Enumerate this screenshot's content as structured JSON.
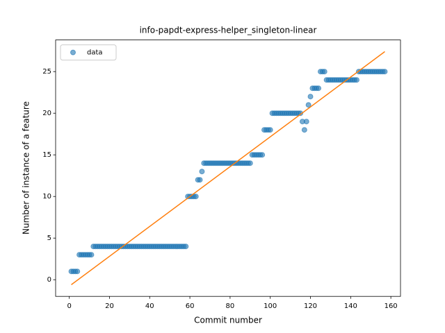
{
  "chart_data": {
    "type": "scatter",
    "title": "info-papdt-express-helper_singleton-linear",
    "x_label": "Commit number",
    "y_label": "Number of instance of a feature",
    "legend": "upper left",
    "series": [
      {
        "name": "data",
        "color": "#1f77b4",
        "x": [
          1,
          2,
          3,
          4,
          5,
          6,
          7,
          8,
          9,
          10,
          11,
          12,
          13,
          14,
          15,
          16,
          17,
          18,
          19,
          20,
          21,
          22,
          23,
          24,
          25,
          26,
          27,
          28,
          29,
          30,
          31,
          32,
          33,
          34,
          35,
          36,
          37,
          38,
          39,
          40,
          41,
          42,
          43,
          44,
          45,
          46,
          47,
          48,
          49,
          50,
          51,
          52,
          53,
          54,
          55,
          56,
          57,
          58,
          59,
          60,
          61,
          62,
          63,
          64,
          65,
          66,
          67,
          68,
          69,
          70,
          71,
          72,
          73,
          74,
          75,
          76,
          77,
          78,
          79,
          80,
          81,
          82,
          83,
          84,
          85,
          86,
          87,
          88,
          89,
          90,
          91,
          92,
          93,
          94,
          95,
          96,
          97,
          98,
          99,
          100,
          101,
          102,
          103,
          104,
          105,
          106,
          107,
          108,
          109,
          110,
          111,
          112,
          113,
          114,
          115,
          116,
          117,
          118,
          119,
          120,
          121,
          122,
          123,
          124,
          125,
          126,
          127,
          128,
          129,
          130,
          131,
          132,
          133,
          134,
          135,
          136,
          137,
          138,
          139,
          140,
          141,
          142,
          143,
          144,
          145,
          146,
          147,
          148,
          149,
          150,
          151,
          152,
          153,
          154,
          155,
          156,
          157
        ],
        "values": [
          1,
          1,
          1,
          1,
          3,
          3,
          3,
          3,
          3,
          3,
          3,
          4,
          4,
          4,
          4,
          4,
          4,
          4,
          4,
          4,
          4,
          4,
          4,
          4,
          4,
          4,
          4,
          4,
          4,
          4,
          4,
          4,
          4,
          4,
          4,
          4,
          4,
          4,
          4,
          4,
          4,
          4,
          4,
          4,
          4,
          4,
          4,
          4,
          4,
          4,
          4,
          4,
          4,
          4,
          4,
          4,
          4,
          4,
          10,
          10,
          10,
          10,
          10,
          12,
          12,
          13,
          14,
          14,
          14,
          14,
          14,
          14,
          14,
          14,
          14,
          14,
          14,
          14,
          14,
          14,
          14,
          14,
          14,
          14,
          14,
          14,
          14,
          14,
          14,
          14,
          15,
          15,
          15,
          15,
          15,
          15,
          18,
          18,
          18,
          18,
          20,
          20,
          20,
          20,
          20,
          20,
          20,
          20,
          20,
          20,
          20,
          20,
          20,
          20,
          20,
          19,
          18,
          19,
          21,
          22,
          23,
          23,
          23,
          23,
          25,
          25,
          25,
          24,
          24,
          24,
          24,
          24,
          24,
          24,
          24,
          24,
          24,
          24,
          24,
          24,
          24,
          24,
          24,
          25,
          25,
          25,
          25,
          25,
          25,
          25,
          25,
          25,
          25,
          25,
          25,
          25,
          25
        ]
      }
    ],
    "fit": {
      "color": "#ff7f0e",
      "x": [
        1,
        157
      ],
      "values": [
        -0.6,
        27.4
      ]
    },
    "xlim": [
      -6.8,
      164.8
    ],
    "xticks": [
      0,
      20,
      40,
      60,
      80,
      100,
      120,
      140,
      160
    ],
    "ylim": [
      -2.0,
      28.8
    ],
    "yticks": [
      0,
      5,
      10,
      15,
      20,
      25
    ]
  }
}
